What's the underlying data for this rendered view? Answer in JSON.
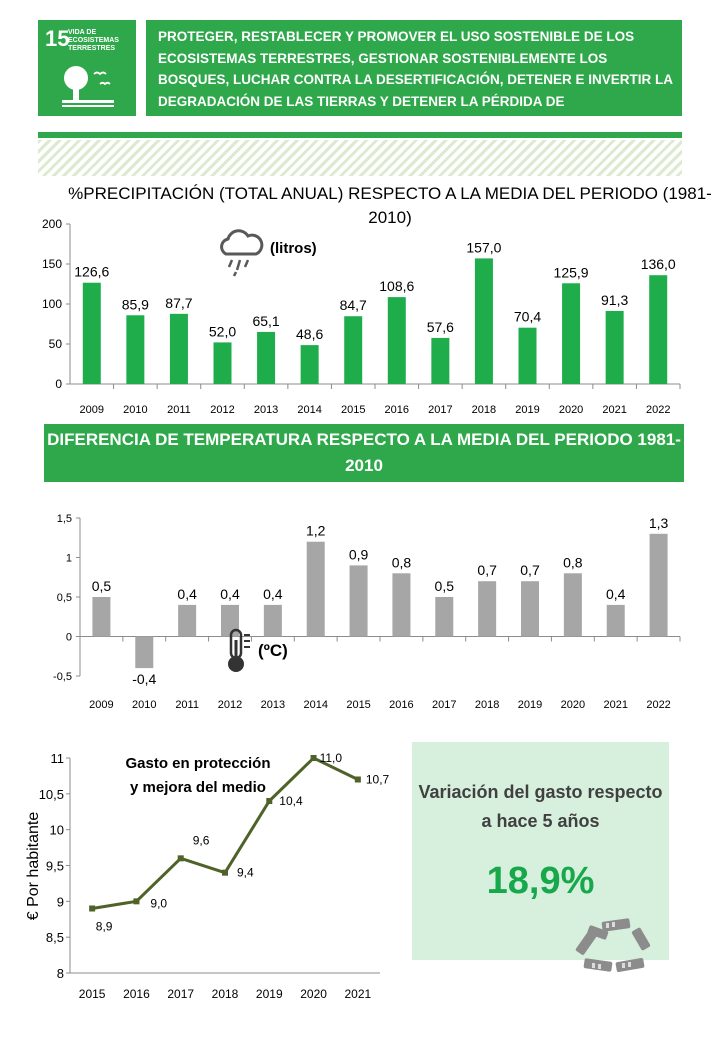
{
  "sdg": {
    "number": "15",
    "name": "VIDA DE ECOSISTEMAS TERRESTRES",
    "goal_text": "PROTEGER, RESTABLECER Y PROMOVER EL USO SOSTENIBLE DE LOS ECOSISTEMAS TERRESTRES, GESTIONAR SOSTENIBLEMENTE LOS BOSQUES, LUCHAR CONTRA LA DESERTIFICACIÓN, DETENER E INVERTIR LA DEGRADACIÓN DE LAS TIERRAS Y DETENER LA PÉRDIDA DE BIODIVERSIDAD",
    "colors": {
      "green": "#2ea84a"
    },
    "icons": [
      "tree-icon",
      "birds-icon"
    ]
  },
  "precip_section": {
    "title": "%PRECIPITACIÓN  (TOTAL ANUAL) RESPECTO  A LA MEDIA DEL PERIODO  (1981-2010)"
  },
  "temp_section": {
    "title": "DIFERENCIA DE TEMPERATURA RESPECTO A LA MEDIA DEL PERIODO 1981-2010"
  },
  "variation": {
    "label": "Variación del gasto respecto a hace 5 años",
    "value": "18,9%",
    "icon": "hands-circle-icon"
  },
  "chart_data": [
    {
      "type": "bar",
      "id": "precipitation",
      "title": "%PRECIPITACIÓN  (TOTAL ANUAL) RESPECTO  A LA MEDIA DEL PERIODO  (1981-2010)",
      "annotation": "(litros)",
      "annotation_icon": "rain-cloud-icon",
      "categories": [
        "2009",
        "2010",
        "2011",
        "2012",
        "2013",
        "2014",
        "2015",
        "2016",
        "2017",
        "2018",
        "2019",
        "2020",
        "2021",
        "2022"
      ],
      "values": [
        126.6,
        85.9,
        87.7,
        52.0,
        65.1,
        48.6,
        84.7,
        108.6,
        57.6,
        157.0,
        70.4,
        125.9,
        91.3,
        136.0
      ],
      "data_labels": [
        "126,6",
        "85,9",
        "87,7",
        "52,0",
        "65,1",
        "48,6",
        "84,7",
        "108,6",
        "57,6",
        "157,0",
        "70,4",
        "125,9",
        "91,3",
        "136,0"
      ],
      "yticks": [
        "0",
        "50",
        "100",
        "150",
        "200"
      ],
      "ylim": [
        0,
        200
      ],
      "color": "#1fad4b",
      "grid": false
    },
    {
      "type": "bar",
      "id": "temperature",
      "title": "DIFERENCIA DE TEMPERATURA RESPECTO A LA MEDIA DEL PERIODO 1981-2010",
      "annotation": "(ºC)",
      "annotation_icon": "thermometer-icon",
      "categories": [
        "2009",
        "2010",
        "2011",
        "2012",
        "2013",
        "2014",
        "2015",
        "2016",
        "2017",
        "2018",
        "2019",
        "2020",
        "2021",
        "2022"
      ],
      "values": [
        0.5,
        -0.4,
        0.4,
        0.4,
        0.4,
        1.2,
        0.9,
        0.8,
        0.5,
        0.7,
        0.7,
        0.8,
        0.4,
        1.3
      ],
      "data_labels": [
        "0,5",
        "-0,4",
        "0,4",
        "0,4",
        "0,4",
        "1,2",
        "0,9",
        "0,8",
        "0,5",
        "0,7",
        "0,7",
        "0,8",
        "0,4",
        "1,3"
      ],
      "yticks": [
        "-0,5",
        "0",
        "0,5",
        "1",
        "1,5"
      ],
      "ylim": [
        -0.5,
        1.5
      ],
      "color": "#a6a6a6",
      "grid": false
    },
    {
      "type": "line",
      "id": "spending",
      "title": "Gasto en protección y mejora del medio",
      "ylabel": "€ Por habitante",
      "categories": [
        "2015",
        "2016",
        "2017",
        "2018",
        "2019",
        "2020",
        "2021"
      ],
      "values": [
        8.9,
        9.0,
        9.6,
        9.4,
        10.4,
        11.0,
        10.7
      ],
      "data_labels": [
        "8,9",
        "9,0",
        "9,6",
        "9,4",
        "10,4",
        "11,0",
        "10,7"
      ],
      "yticks": [
        "8",
        "8,5",
        "9",
        "9,5",
        "10",
        "10,5",
        "11"
      ],
      "ylim": [
        8,
        11
      ],
      "color": "#4f6228",
      "grid": false
    }
  ]
}
